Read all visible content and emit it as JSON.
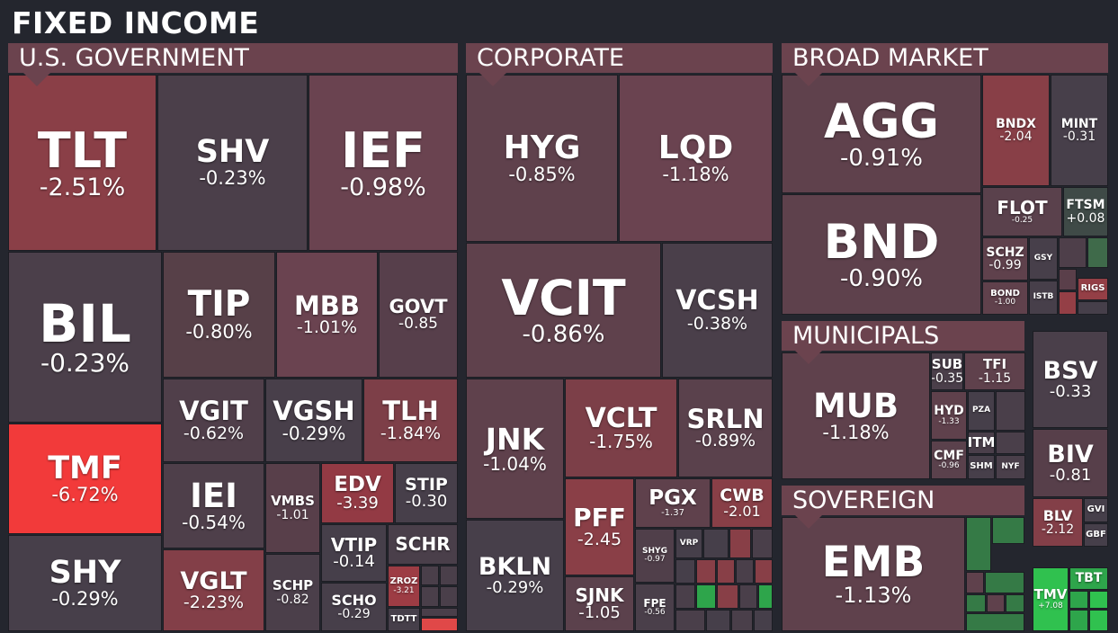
{
  "title": "FIXED INCOME",
  "sections": {
    "usgov": "U.S. GOVERNMENT",
    "corporate": "CORPORATE",
    "broad": "BROAD MARKET",
    "municipals": "MUNICIPALS",
    "sovereign": "SOVEREIGN"
  },
  "tiles": {
    "TLT": {
      "ticker": "TLT",
      "change": "-2.51%"
    },
    "SHV": {
      "ticker": "SHV",
      "change": "-0.23%"
    },
    "IEF": {
      "ticker": "IEF",
      "change": "-0.98%"
    },
    "BIL": {
      "ticker": "BIL",
      "change": "-0.23%"
    },
    "TIP": {
      "ticker": "TIP",
      "change": "-0.80%"
    },
    "MBB": {
      "ticker": "MBB",
      "change": "-1.01%"
    },
    "GOVT": {
      "ticker": "GOVT",
      "change": "-0.85"
    },
    "VGIT": {
      "ticker": "VGIT",
      "change": "-0.62%"
    },
    "VGSH": {
      "ticker": "VGSH",
      "change": "-0.29%"
    },
    "TLH": {
      "ticker": "TLH",
      "change": "-1.84%"
    },
    "TMF": {
      "ticker": "TMF",
      "change": "-6.72%"
    },
    "IEI": {
      "ticker": "IEI",
      "change": "-0.54%"
    },
    "VMBS": {
      "ticker": "VMBS",
      "change": "-1.01"
    },
    "EDV": {
      "ticker": "EDV",
      "change": "-3.39"
    },
    "STIP": {
      "ticker": "STIP",
      "change": "-0.30"
    },
    "VTIP": {
      "ticker": "VTIP",
      "change": "-0.14"
    },
    "SCHR": {
      "ticker": "SCHR",
      "change": ""
    },
    "SHY": {
      "ticker": "SHY",
      "change": "-0.29%"
    },
    "VGLT": {
      "ticker": "VGLT",
      "change": "-2.23%"
    },
    "SCHP": {
      "ticker": "SCHP",
      "change": "-0.82"
    },
    "SCHO": {
      "ticker": "SCHO",
      "change": "-0.29"
    },
    "ZROZ": {
      "ticker": "ZROZ",
      "change": "-3.21"
    },
    "TDTT": {
      "ticker": "TDTT",
      "change": ""
    },
    "HYG": {
      "ticker": "HYG",
      "change": "-0.85%"
    },
    "LQD": {
      "ticker": "LQD",
      "change": "-1.18%"
    },
    "VCIT": {
      "ticker": "VCIT",
      "change": "-0.86%"
    },
    "VCSH": {
      "ticker": "VCSH",
      "change": "-0.38%"
    },
    "JNK": {
      "ticker": "JNK",
      "change": "-1.04%"
    },
    "VCLT": {
      "ticker": "VCLT",
      "change": "-1.75%"
    },
    "SRLN": {
      "ticker": "SRLN",
      "change": "-0.89%"
    },
    "PFF": {
      "ticker": "PFF",
      "change": "-2.45"
    },
    "PGX": {
      "ticker": "PGX",
      "change": "-1.37"
    },
    "CWB": {
      "ticker": "CWB",
      "change": "-2.01"
    },
    "SHYG": {
      "ticker": "SHYG",
      "change": "-0.97"
    },
    "VRP": {
      "ticker": "VRP",
      "change": ""
    },
    "BKLN": {
      "ticker": "BKLN",
      "change": "-0.29%"
    },
    "SJNK": {
      "ticker": "SJNK",
      "change": "-1.05"
    },
    "FPE": {
      "ticker": "FPE",
      "change": "-0.56"
    },
    "AGG": {
      "ticker": "AGG",
      "change": "-0.91%"
    },
    "BNDX": {
      "ticker": "BNDX",
      "change": "-2.04"
    },
    "MINT": {
      "ticker": "MINT",
      "change": "-0.31"
    },
    "BND": {
      "ticker": "BND",
      "change": "-0.90%"
    },
    "FLOT": {
      "ticker": "FLOT",
      "change": "-0.25"
    },
    "FTSM": {
      "ticker": "FTSM",
      "change": "+0.08"
    },
    "SCHZ": {
      "ticker": "SCHZ",
      "change": "-0.99"
    },
    "GSY": {
      "ticker": "GSY",
      "change": ""
    },
    "BOND": {
      "ticker": "BOND",
      "change": "-1.00"
    },
    "ISTB": {
      "ticker": "ISTB",
      "change": ""
    },
    "RIGS": {
      "ticker": "RIGS",
      "change": ""
    },
    "MUB": {
      "ticker": "MUB",
      "change": "-1.18%"
    },
    "SUB": {
      "ticker": "SUB",
      "change": "-0.35"
    },
    "TFI": {
      "ticker": "TFI",
      "change": "-1.15"
    },
    "HYD": {
      "ticker": "HYD",
      "change": "-1.33"
    },
    "PZA": {
      "ticker": "PZA",
      "change": ""
    },
    "ITM": {
      "ticker": "ITM",
      "change": ""
    },
    "CMF": {
      "ticker": "CMF",
      "change": "-0.96"
    },
    "SHM": {
      "ticker": "SHM",
      "change": ""
    },
    "NYF": {
      "ticker": "NYF",
      "change": ""
    },
    "EMB": {
      "ticker": "EMB",
      "change": "-1.13%"
    },
    "BSV": {
      "ticker": "BSV",
      "change": "-0.33"
    },
    "BIV": {
      "ticker": "BIV",
      "change": "-0.81"
    },
    "BLV": {
      "ticker": "BLV",
      "change": "-2.12"
    },
    "GVI": {
      "ticker": "GVI",
      "change": ""
    },
    "GBF": {
      "ticker": "GBF",
      "change": ""
    },
    "TMV": {
      "ticker": "TMV",
      "change": "+7.08"
    },
    "TBT": {
      "ticker": "TBT",
      "change": ""
    }
  },
  "colors": {
    "background": "#24262e",
    "section_header": "#6b434e",
    "strong_red": "#f23a3a",
    "strong_green": "#30c14f"
  }
}
